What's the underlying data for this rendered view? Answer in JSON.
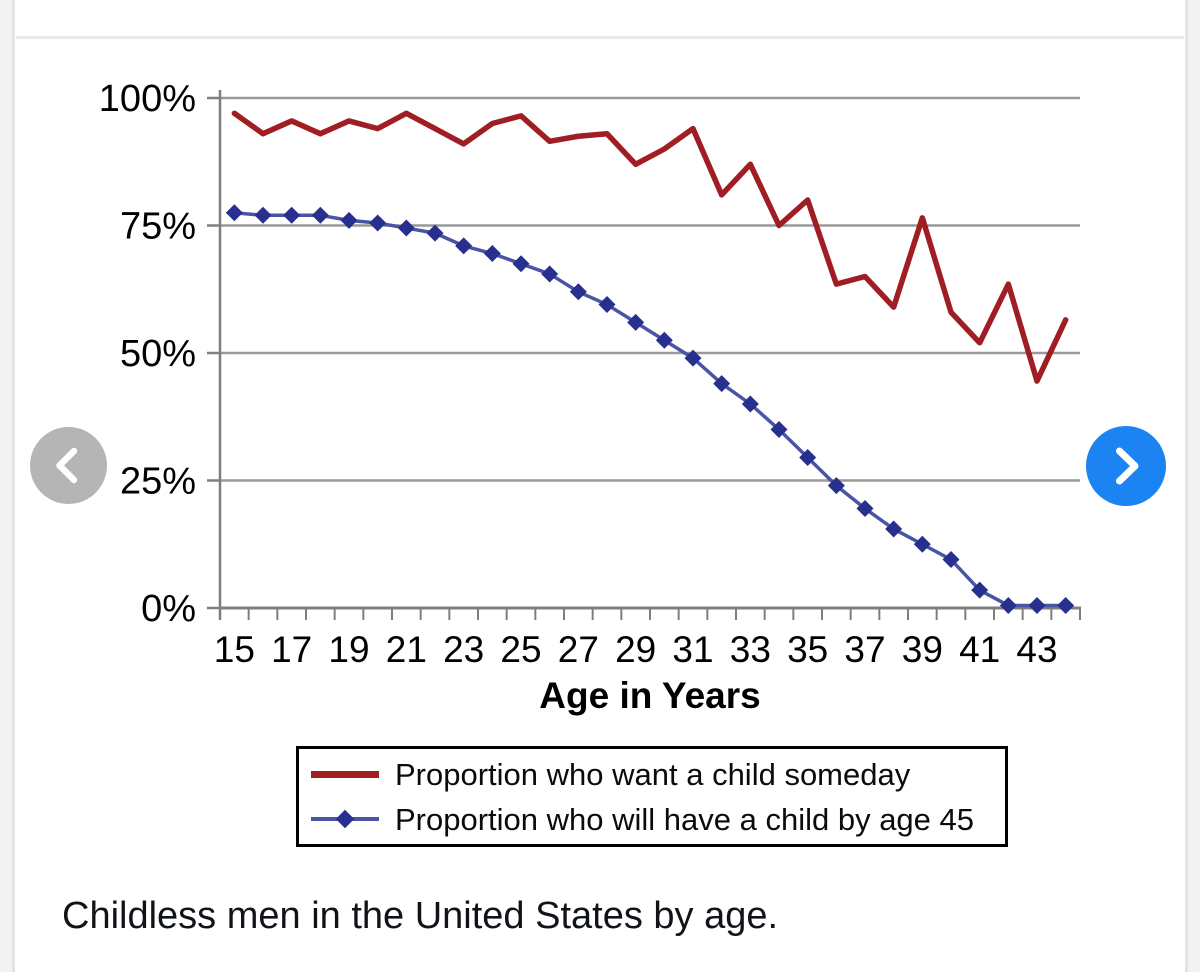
{
  "page": {
    "caption": "Childless men in the United States by age."
  },
  "nav": {
    "prev": "previous",
    "next": "next"
  },
  "chart_data": {
    "type": "line",
    "title": "",
    "xlabel": "Age in Years",
    "ylabel": "",
    "x": [
      15,
      16,
      17,
      18,
      19,
      20,
      21,
      22,
      23,
      24,
      25,
      26,
      27,
      28,
      29,
      30,
      31,
      32,
      33,
      34,
      35,
      36,
      37,
      38,
      39,
      40,
      41,
      42,
      43,
      44
    ],
    "xtick_labels": [
      "15",
      "17",
      "19",
      "21",
      "23",
      "25",
      "27",
      "29",
      "31",
      "33",
      "35",
      "37",
      "39",
      "41",
      "43"
    ],
    "ytick_labels": [
      "0%",
      "25%",
      "50%",
      "75%",
      "100%"
    ],
    "yticks": [
      0,
      25,
      50,
      75,
      100
    ],
    "ylim": [
      0,
      100
    ],
    "grid": true,
    "legend_position": "bottom",
    "series": [
      {
        "name": "Proportion who want a child someday",
        "color": "#A01E23",
        "marker": "none",
        "values": [
          97,
          93,
          95.5,
          93,
          95.5,
          94,
          97,
          94,
          91,
          95,
          96.5,
          91.5,
          92.5,
          93,
          87,
          90,
          94,
          81,
          87,
          75,
          80,
          63.5,
          65,
          59,
          76.5,
          58,
          52,
          63.5,
          44.5,
          56.5
        ]
      },
      {
        "name": "Proportion who will have a child by age 45",
        "color": "#28308F",
        "line_color": "#4A54A4",
        "marker": "diamond",
        "values": [
          77.5,
          77,
          77,
          77,
          76,
          75.5,
          74.5,
          73.5,
          71,
          69.5,
          67.5,
          65.5,
          62,
          59.5,
          56,
          52.5,
          49,
          44,
          40,
          35,
          29.5,
          24,
          19.5,
          15.5,
          12.5,
          9.5,
          3.5,
          0.5,
          0.5,
          0.5
        ]
      }
    ]
  }
}
